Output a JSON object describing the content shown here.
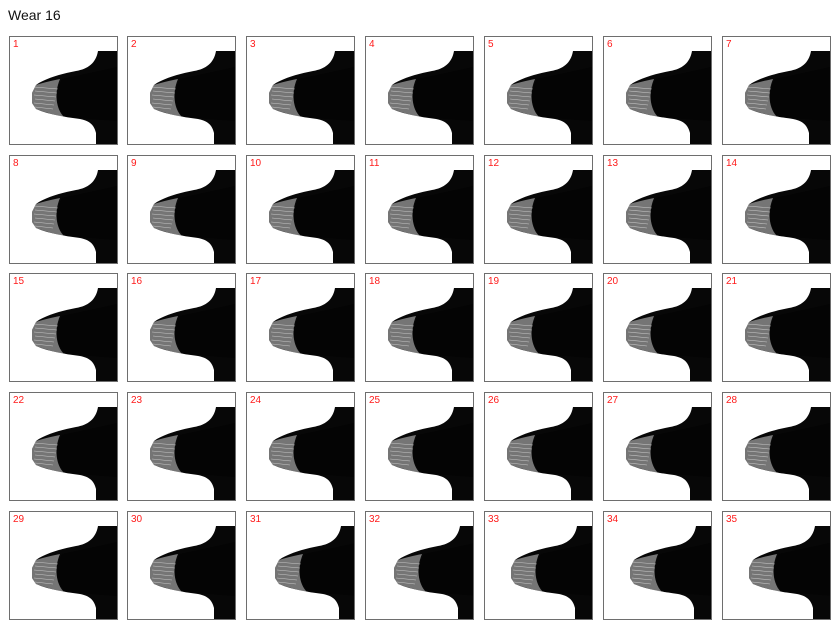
{
  "title": "Wear 16",
  "colors": {
    "label": "#ff1a1a",
    "tooth": "#070707",
    "wear_highlight": "#cfcfcf",
    "frame": "#6e6e6e"
  },
  "tiles": [
    {
      "label": "1"
    },
    {
      "label": "2"
    },
    {
      "label": "3"
    },
    {
      "label": "4"
    },
    {
      "label": "5"
    },
    {
      "label": "6"
    },
    {
      "label": "7"
    },
    {
      "label": "8"
    },
    {
      "label": "9"
    },
    {
      "label": "10"
    },
    {
      "label": "11"
    },
    {
      "label": "12"
    },
    {
      "label": "13"
    },
    {
      "label": "14"
    },
    {
      "label": "15"
    },
    {
      "label": "16"
    },
    {
      "label": "17"
    },
    {
      "label": "18"
    },
    {
      "label": "19"
    },
    {
      "label": "20"
    },
    {
      "label": "21"
    },
    {
      "label": "22"
    },
    {
      "label": "23"
    },
    {
      "label": "24"
    },
    {
      "label": "25"
    },
    {
      "label": "26"
    },
    {
      "label": "27"
    },
    {
      "label": "28"
    },
    {
      "label": "29"
    },
    {
      "label": "30"
    },
    {
      "label": "31"
    },
    {
      "label": "32"
    },
    {
      "label": "33"
    },
    {
      "label": "34"
    },
    {
      "label": "35"
    }
  ]
}
